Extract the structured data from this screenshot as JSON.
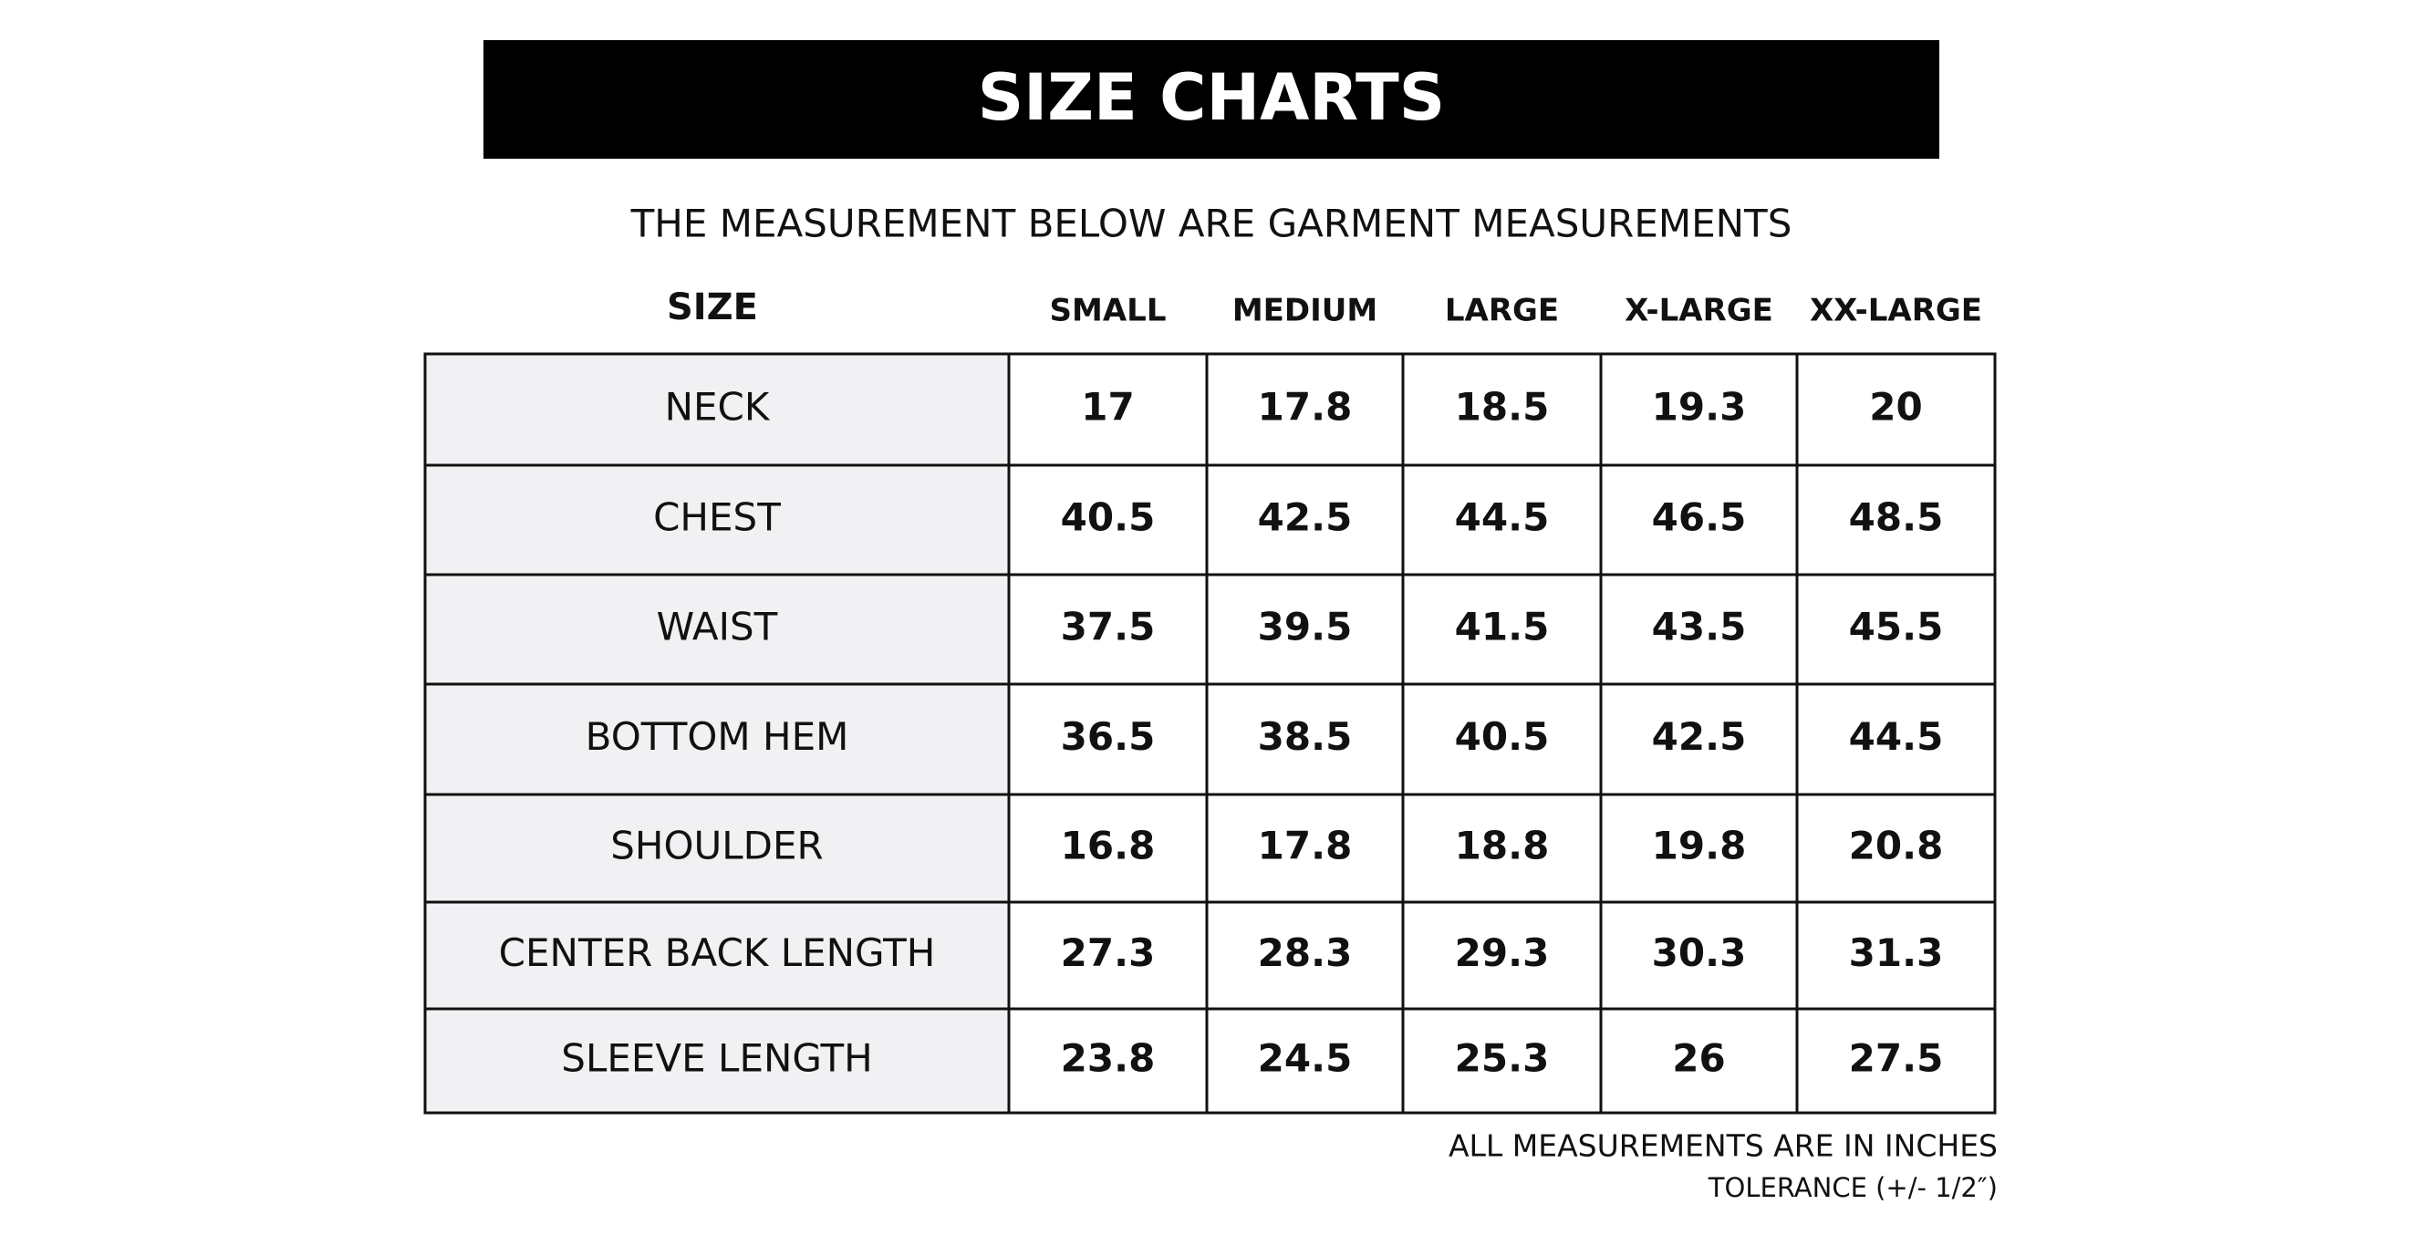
{
  "header": {
    "title": "SIZE CHARTS",
    "subtitle": "THE MEASUREMENT BELOW ARE GARMENT MEASUREMENTS"
  },
  "table": {
    "corner": "SIZE",
    "columns": [
      "SMALL",
      "MEDIUM",
      "LARGE",
      "X-LARGE",
      "XX-LARGE"
    ],
    "rows": [
      {
        "label": "NECK",
        "values": [
          17,
          17.8,
          18.5,
          19.3,
          20
        ]
      },
      {
        "label": "CHEST",
        "values": [
          40.5,
          42.5,
          44.5,
          46.5,
          48.5
        ]
      },
      {
        "label": "WAIST",
        "values": [
          37.5,
          39.5,
          41.5,
          43.5,
          45.5
        ]
      },
      {
        "label": "BOTTOM HEM",
        "values": [
          36.5,
          38.5,
          40.5,
          42.5,
          44.5
        ]
      },
      {
        "label": "SHOULDER",
        "values": [
          16.8,
          17.8,
          18.8,
          19.8,
          20.8
        ]
      },
      {
        "label": "CENTER BACK LENGTH",
        "values": [
          27.3,
          28.3,
          29.3,
          30.3,
          31.3
        ]
      },
      {
        "label": "SLEEVE LENGTH",
        "values": [
          23.8,
          24.5,
          25.3,
          26,
          27.5
        ]
      }
    ]
  },
  "footer": {
    "note": "ALL MEASUREMENTS ARE IN INCHES",
    "tolerance": "TOLERANCE (+/- 1/2″)"
  }
}
